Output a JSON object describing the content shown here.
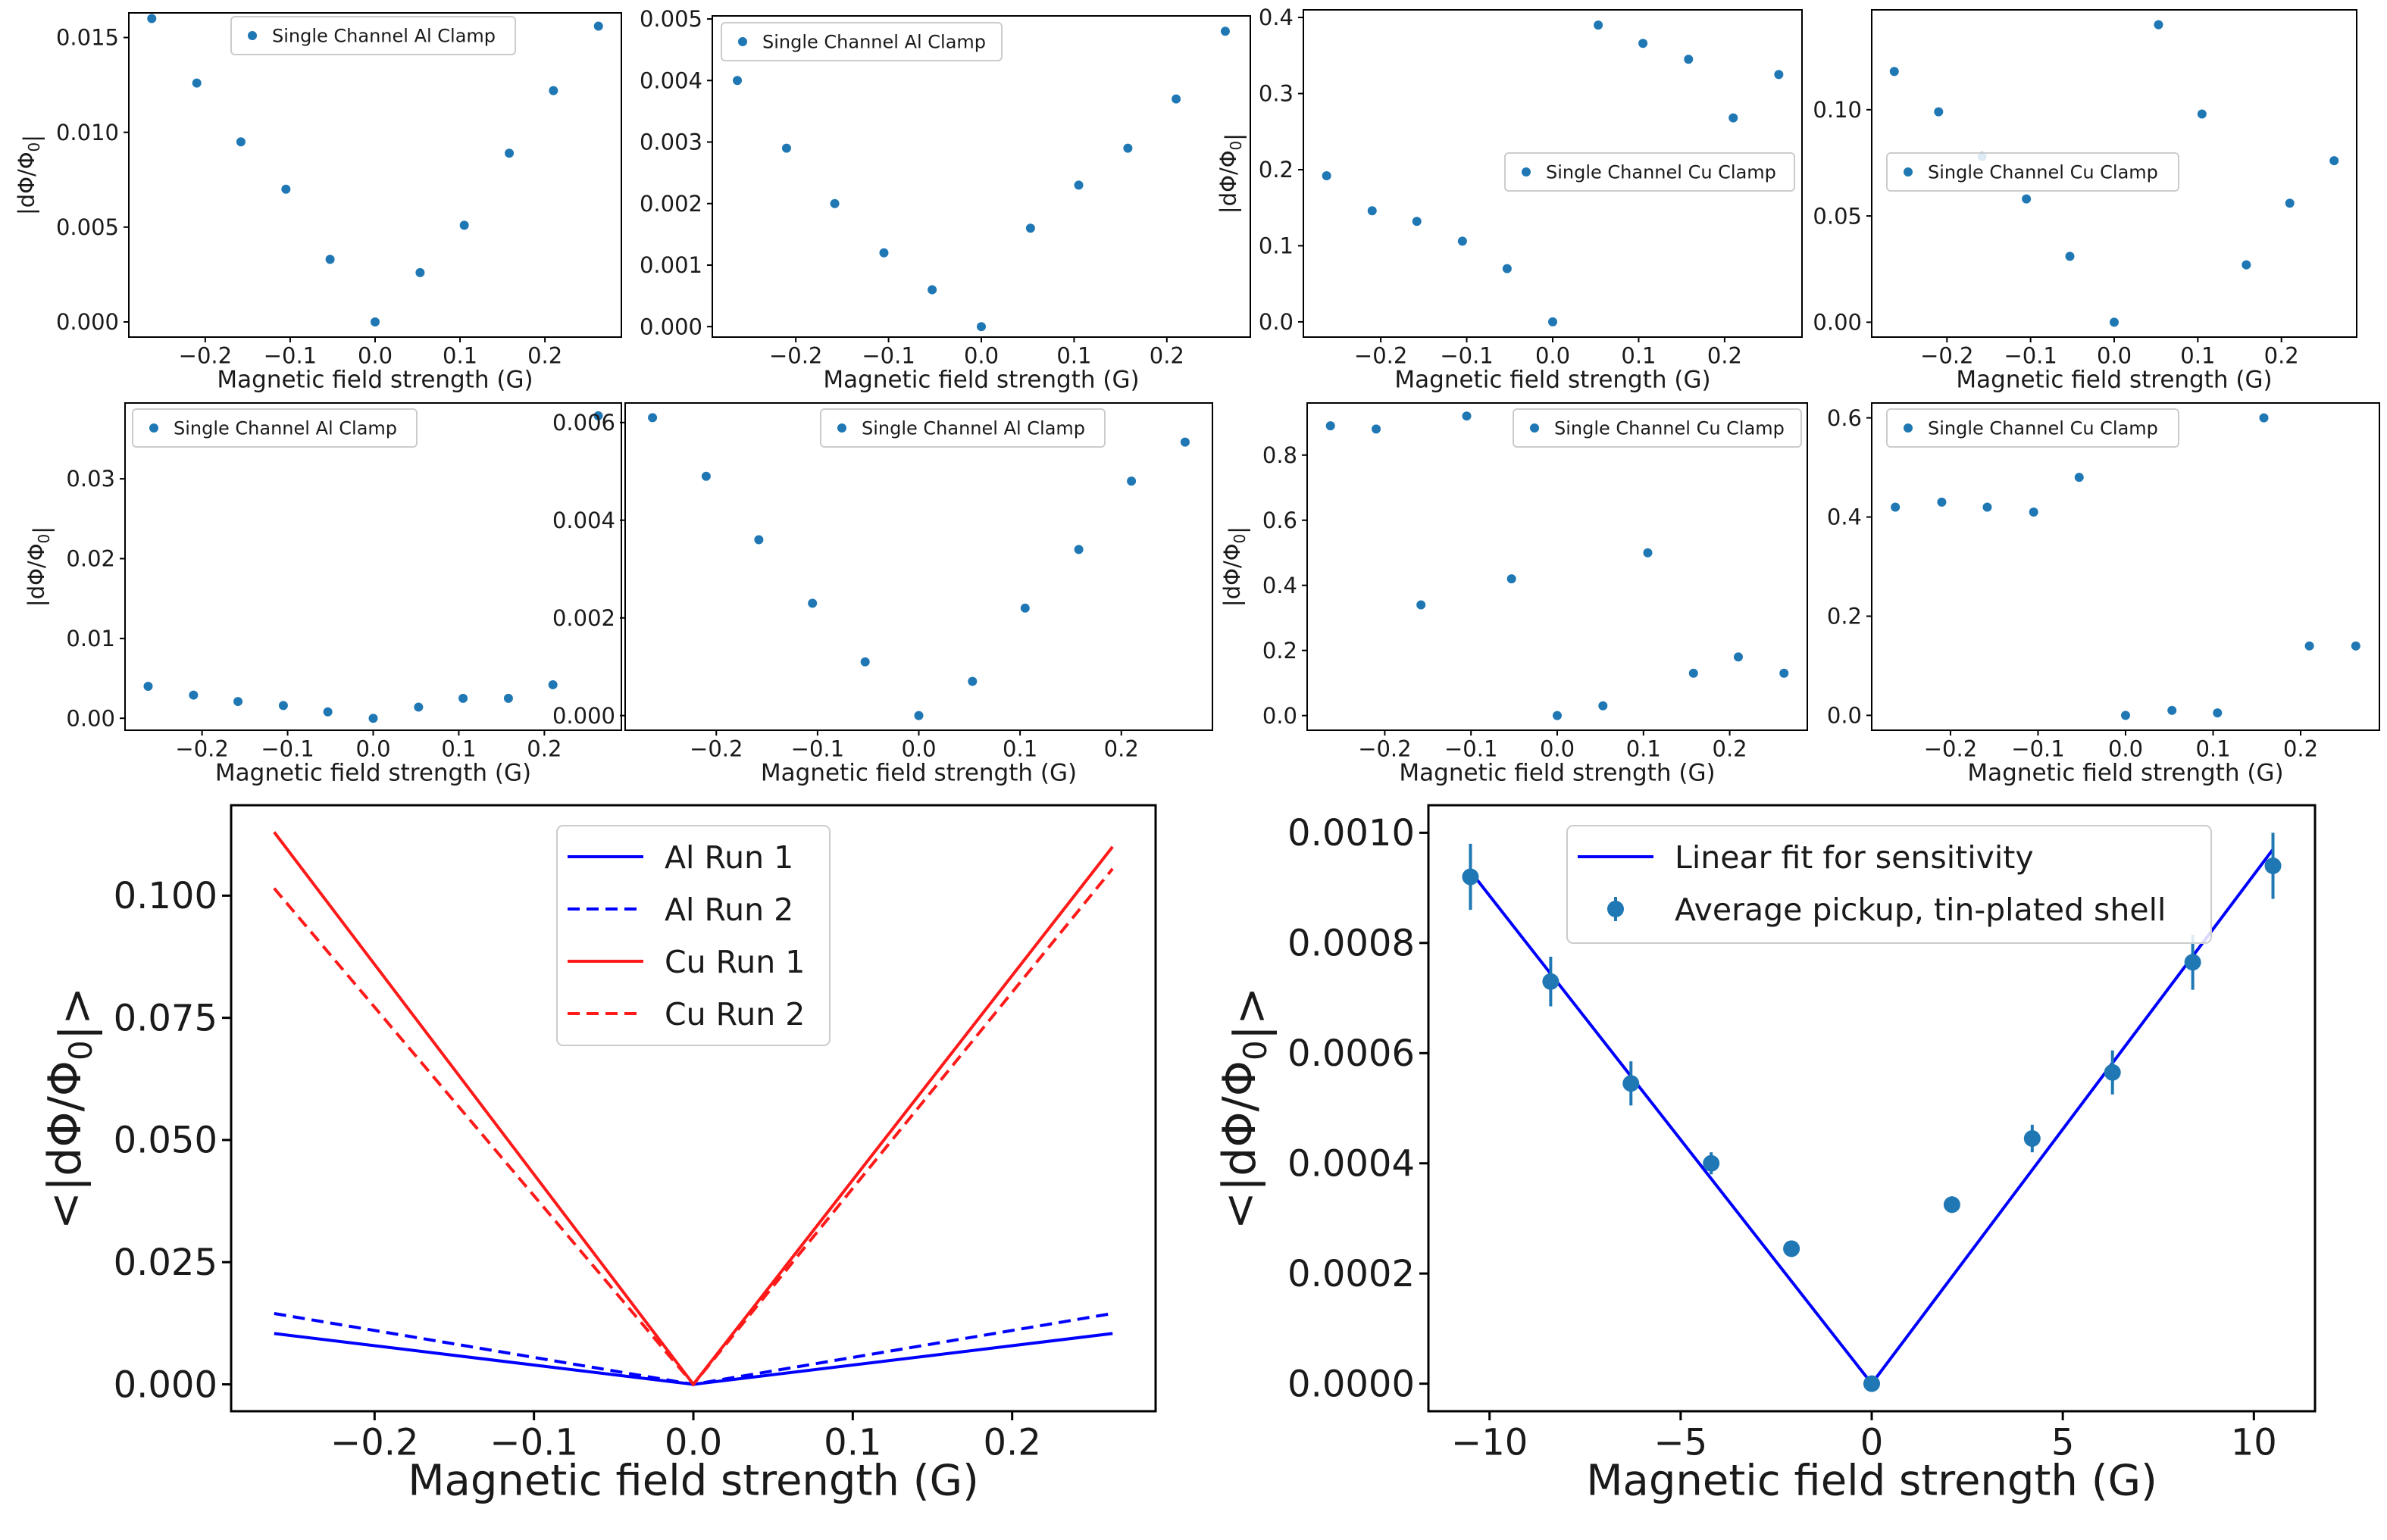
{
  "colors": {
    "marker": "#1f77b4",
    "al_line": "#0000ff",
    "cu_line": "#ff1a1a",
    "fit_line": "#0000ff"
  },
  "chart_data": [
    {
      "id": "p1",
      "type": "scatter",
      "xlabel": "Magnetic field strength (G)",
      "ylabel": "|dΦ/Φ0|",
      "xlim": [
        -0.29,
        0.29
      ],
      "ylim": [
        -0.0008,
        0.0163
      ],
      "xticks": [
        -0.2,
        -0.1,
        0.0,
        0.1,
        0.2
      ],
      "xtick_labels": [
        "−0.2",
        "−0.1",
        "0.0",
        "0.1",
        "0.2"
      ],
      "yticks": [
        0,
        0.005,
        0.01,
        0.015
      ],
      "ytick_labels": [
        "0.000",
        "0.005",
        "0.010",
        "0.015"
      ],
      "legend": "top-center",
      "series": [
        {
          "name": "Single Channel Al Clamp",
          "x": [
            -0.263,
            -0.21,
            -0.158,
            -0.105,
            -0.053,
            0.0,
            0.053,
            0.105,
            0.158,
            0.21,
            0.263
          ],
          "y": [
            0.016,
            0.0126,
            0.0095,
            0.007,
            0.0033,
            0.0,
            0.0026,
            0.0051,
            0.0089,
            0.0122,
            0.0156
          ]
        }
      ]
    },
    {
      "id": "p2",
      "type": "scatter",
      "xlabel": "Magnetic field strength (G)",
      "ylabel": "",
      "xlim": [
        -0.29,
        0.29
      ],
      "ylim": [
        -0.00017,
        0.00505
      ],
      "xticks": [
        -0.2,
        -0.1,
        0.0,
        0.1,
        0.2
      ],
      "xtick_labels": [
        "−0.2",
        "−0.1",
        "0.0",
        "0.1",
        "0.2"
      ],
      "yticks": [
        0,
        0.001,
        0.002,
        0.003,
        0.004,
        0.005
      ],
      "ytick_labels": [
        "0.000",
        "0.001",
        "0.002",
        "0.003",
        "0.004",
        "0.005"
      ],
      "legend": "top-left",
      "series": [
        {
          "name": "Single Channel Al Clamp",
          "x": [
            -0.263,
            -0.21,
            -0.158,
            -0.105,
            -0.053,
            0.0,
            0.053,
            0.105,
            0.158,
            0.21,
            0.263
          ],
          "y": [
            0.004,
            0.0029,
            0.002,
            0.0012,
            0.0006,
            0.0,
            0.0016,
            0.0023,
            0.0029,
            0.0037,
            0.0048
          ]
        }
      ]
    },
    {
      "id": "p3",
      "type": "scatter",
      "xlabel": "Magnetic field strength (G)",
      "ylabel": "|dΦ/Φ0|",
      "xlim": [
        -0.29,
        0.29
      ],
      "ylim": [
        -0.02,
        0.41
      ],
      "xticks": [
        -0.2,
        -0.1,
        0.0,
        0.1,
        0.2
      ],
      "xtick_labels": [
        "−0.2",
        "−0.1",
        "0.0",
        "0.1",
        "0.2"
      ],
      "yticks": [
        0,
        0.1,
        0.2,
        0.3,
        0.4
      ],
      "ytick_labels": [
        "0.0",
        "0.1",
        "0.2",
        "0.3",
        "0.4"
      ],
      "legend": "center-right",
      "series": [
        {
          "name": "Single Channel Cu Clamp",
          "x": [
            -0.263,
            -0.21,
            -0.158,
            -0.105,
            -0.053,
            0.0,
            0.053,
            0.105,
            0.158,
            0.21,
            0.263
          ],
          "y": [
            0.192,
            0.146,
            0.132,
            0.106,
            0.07,
            0.0,
            0.39,
            0.366,
            0.345,
            0.268,
            0.325
          ]
        }
      ]
    },
    {
      "id": "p4",
      "type": "scatter",
      "xlabel": "Magnetic field strength (G)",
      "ylabel": "",
      "xlim": [
        -0.29,
        0.29
      ],
      "ylim": [
        -0.007,
        0.147
      ],
      "xticks": [
        -0.2,
        -0.1,
        0.0,
        0.1,
        0.2
      ],
      "xtick_labels": [
        "−0.2",
        "−0.1",
        "0.0",
        "0.1",
        "0.2"
      ],
      "yticks": [
        0,
        0.05,
        0.1
      ],
      "ytick_labels": [
        "0.00",
        "0.05",
        "0.10"
      ],
      "legend": "center-left",
      "series": [
        {
          "name": "Single Channel Cu Clamp",
          "x": [
            -0.263,
            -0.21,
            -0.158,
            -0.105,
            -0.053,
            0.0,
            0.053,
            0.105,
            0.158,
            0.21,
            0.263
          ],
          "y": [
            0.118,
            0.099,
            0.078,
            0.058,
            0.031,
            0.0,
            0.14,
            0.098,
            0.027,
            0.056,
            0.076
          ]
        }
      ]
    },
    {
      "id": "p5",
      "type": "scatter",
      "xlabel": "Magnetic field strength (G)",
      "ylabel": "|dΦ/Φ0|",
      "xlim": [
        -0.29,
        0.29
      ],
      "ylim": [
        -0.0015,
        0.0395
      ],
      "xticks": [
        -0.2,
        -0.1,
        0.0,
        0.1,
        0.2
      ],
      "xtick_labels": [
        "−0.2",
        "−0.1",
        "0.0",
        "0.1",
        "0.2"
      ],
      "yticks": [
        0,
        0.01,
        0.02,
        0.03
      ],
      "ytick_labels": [
        "0.00",
        "0.01",
        "0.02",
        "0.03"
      ],
      "legend": "top-left",
      "series": [
        {
          "name": "Single Channel Al Clamp",
          "x": [
            -0.263,
            -0.21,
            -0.158,
            -0.105,
            -0.053,
            0.0,
            0.053,
            0.105,
            0.158,
            0.21,
            0.263
          ],
          "y": [
            0.004,
            0.0029,
            0.0021,
            0.0016,
            0.0008,
            0.0,
            0.0014,
            0.0025,
            0.0025,
            0.0042,
            0.0379
          ]
        }
      ]
    },
    {
      "id": "p6",
      "type": "scatter",
      "xlabel": "Magnetic field strength (G)",
      "ylabel": "",
      "xlim": [
        -0.29,
        0.29
      ],
      "ylim": [
        -0.0003,
        0.0064
      ],
      "xticks": [
        -0.2,
        -0.1,
        0.0,
        0.1,
        0.2
      ],
      "xtick_labels": [
        "−0.2",
        "−0.1",
        "0.0",
        "0.1",
        "0.2"
      ],
      "yticks": [
        0,
        0.002,
        0.004,
        0.006
      ],
      "ytick_labels": [
        "0.000",
        "0.002",
        "0.004",
        "0.006"
      ],
      "legend": "top-center",
      "series": [
        {
          "name": "Single Channel Al Clamp",
          "x": [
            -0.263,
            -0.21,
            -0.158,
            -0.105,
            -0.053,
            0.0,
            0.053,
            0.105,
            0.158,
            0.21,
            0.263
          ],
          "y": [
            0.0061,
            0.0049,
            0.0036,
            0.0023,
            0.0011,
            0.0,
            0.0007,
            0.0022,
            0.0034,
            0.0048,
            0.0056
          ]
        }
      ]
    },
    {
      "id": "p7",
      "type": "scatter",
      "xlabel": "Magnetic field strength (G)",
      "ylabel": "|dΦ/Φ0|",
      "xlim": [
        -0.29,
        0.29
      ],
      "ylim": [
        -0.045,
        0.96
      ],
      "xticks": [
        -0.2,
        -0.1,
        0.0,
        0.1,
        0.2
      ],
      "xtick_labels": [
        "−0.2",
        "−0.1",
        "0.0",
        "0.1",
        "0.2"
      ],
      "yticks": [
        0,
        0.2,
        0.4,
        0.6,
        0.8
      ],
      "ytick_labels": [
        "0.0",
        "0.2",
        "0.4",
        "0.6",
        "0.8"
      ],
      "legend": "top-right",
      "series": [
        {
          "name": "Single Channel Cu Clamp",
          "x": [
            -0.263,
            -0.21,
            -0.158,
            -0.105,
            -0.053,
            0.0,
            0.053,
            0.105,
            0.158,
            0.21,
            0.263
          ],
          "y": [
            0.89,
            0.88,
            0.34,
            0.92,
            0.42,
            0.0,
            0.03,
            0.5,
            0.13,
            0.18,
            0.13
          ]
        }
      ]
    },
    {
      "id": "p8",
      "type": "scatter",
      "xlabel": "Magnetic field strength (G)",
      "ylabel": "",
      "xlim": [
        -0.29,
        0.29
      ],
      "ylim": [
        -0.03,
        0.63
      ],
      "xticks": [
        -0.2,
        -0.1,
        0.0,
        0.1,
        0.2
      ],
      "xtick_labels": [
        "−0.2",
        "−0.1",
        "0.0",
        "0.1",
        "0.2"
      ],
      "yticks": [
        0,
        0.2,
        0.4,
        0.6
      ],
      "ytick_labels": [
        "0.0",
        "0.2",
        "0.4",
        "0.6"
      ],
      "legend": "top-left",
      "series": [
        {
          "name": "Single Channel Cu Clamp",
          "x": [
            -0.263,
            -0.21,
            -0.158,
            -0.105,
            -0.053,
            0.0,
            0.053,
            0.105,
            0.158,
            0.21,
            0.263
          ],
          "y": [
            0.42,
            0.43,
            0.42,
            0.41,
            0.48,
            0.0,
            0.01,
            0.005,
            0.6,
            0.14,
            0.14
          ]
        }
      ]
    },
    {
      "id": "p9",
      "type": "line",
      "xlabel": "Magnetic field strength (G)",
      "ylabel": "<|dΦ/Φ0|>",
      "xlim": [
        -0.29,
        0.29
      ],
      "ylim": [
        -0.0055,
        0.1185
      ],
      "xticks": [
        -0.2,
        -0.1,
        0.0,
        0.1,
        0.2
      ],
      "xtick_labels": [
        "−0.2",
        "−0.1",
        "0.0",
        "0.1",
        "0.2"
      ],
      "yticks": [
        0,
        0.025,
        0.05,
        0.075,
        0.1
      ],
      "ytick_labels": [
        "0.000",
        "0.025",
        "0.050",
        "0.075",
        "0.100"
      ],
      "legend": "top-center",
      "series": [
        {
          "name": "Al Run 1",
          "style": "solid",
          "color": "#0000ff",
          "x": [
            -0.263,
            0.0,
            0.263
          ],
          "y": [
            0.0104,
            0.0,
            0.0104
          ]
        },
        {
          "name": "Al Run 2",
          "style": "dashed",
          "color": "#0000ff",
          "x": [
            -0.263,
            0.0,
            0.263
          ],
          "y": [
            0.0145,
            0.0,
            0.0145
          ]
        },
        {
          "name": "Cu Run 1",
          "style": "solid",
          "color": "#ff1a1a",
          "x": [
            -0.263,
            0.0,
            0.263
          ],
          "y": [
            0.113,
            0.0,
            0.11
          ]
        },
        {
          "name": "Cu Run 2",
          "style": "dashed",
          "color": "#ff1a1a",
          "x": [
            -0.263,
            0.0,
            0.263
          ],
          "y": [
            0.1015,
            0.0,
            0.1055
          ]
        }
      ]
    },
    {
      "id": "p10",
      "type": "scatter",
      "xlabel": "Magnetic field strength (G)",
      "ylabel": "<|dΦ/Φ0|>",
      "xlim": [
        -11.6,
        11.6
      ],
      "ylim": [
        -5e-05,
        0.00105
      ],
      "xticks": [
        -10,
        -5,
        0,
        5,
        10
      ],
      "xtick_labels": [
        "−10",
        "−5",
        "0",
        "5",
        "10"
      ],
      "yticks": [
        0,
        0.0002,
        0.0004,
        0.0006,
        0.0008,
        0.001
      ],
      "ytick_labels": [
        "0.0000",
        "0.0002",
        "0.0004",
        "0.0006",
        "0.0008",
        "0.0010"
      ],
      "legend": "top-center",
      "series": [
        {
          "name": "Linear fit for sensitivity",
          "style": "solid",
          "color": "#0000ff",
          "x": [
            -10.5,
            0.0,
            10.5
          ],
          "y": [
            0.00093,
            0.0,
            0.00097
          ]
        },
        {
          "name": "Average pickup, tin-plated shell",
          "style": "errorbar",
          "x": [
            -10.5,
            -8.4,
            -6.3,
            -4.2,
            -2.1,
            0.0,
            2.1,
            4.2,
            6.3,
            8.4,
            10.5
          ],
          "y": [
            0.00092,
            0.00073,
            0.000545,
            0.0004,
            0.000245,
            0.0,
            0.000325,
            0.000445,
            0.000565,
            0.000765,
            0.00094
          ],
          "yerr": [
            6e-05,
            4.5e-05,
            4e-05,
            2e-05,
            1.5e-05,
            1e-05,
            1.5e-05,
            2.5e-05,
            4e-05,
            5e-05,
            6e-05
          ]
        }
      ]
    }
  ]
}
